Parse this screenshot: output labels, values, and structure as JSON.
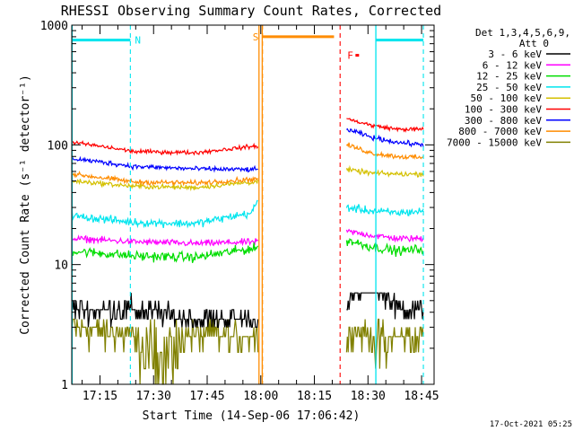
{
  "chart_data": {
    "type": "line",
    "title": "RHESSI Observing Summary Count Rates, Corrected",
    "ylabel": "Corrected Count Rate (s⁻¹ detector⁻¹)",
    "xlabel": "Start Time (14-Sep-06 17:06:42)",
    "ylog": true,
    "xlim": [
      7.1,
      108.5
    ],
    "ylim": [
      1,
      1000
    ],
    "x_ticks": [
      {
        "v": 15,
        "label": "17:15"
      },
      {
        "v": 30,
        "label": "17:30"
      },
      {
        "v": 45,
        "label": "17:45"
      },
      {
        "v": 60,
        "label": "18:00"
      },
      {
        "v": 75,
        "label": "18:15"
      },
      {
        "v": 90,
        "label": "18:30"
      },
      {
        "v": 105,
        "label": "18:45"
      }
    ],
    "y_ticks": [
      {
        "v": 1,
        "label": "1"
      },
      {
        "v": 10,
        "label": "10"
      },
      {
        "v": 100,
        "label": "100"
      },
      {
        "v": 1000,
        "label": "1000"
      }
    ],
    "legend": {
      "header": [
        "Det 1,3,4,5,6,9,",
        "Att 0"
      ],
      "placement": "right"
    },
    "series": [
      {
        "name": "3 - 6 keV",
        "color": "#000000",
        "seg1": [
          4.2,
          4.2,
          3.5,
          3.5
        ],
        "seg2": [
          4.5,
          7.2,
          4.2,
          4.2
        ],
        "noise": 0.14
      },
      {
        "name": "6 - 12 keV",
        "color": "#ff00ff",
        "seg1": [
          16.5,
          15.5,
          15.0,
          15.5
        ],
        "seg2": [
          19.0,
          17.5,
          16.5,
          16.5
        ],
        "noise": 0.04
      },
      {
        "name": "12 - 25 keV",
        "color": "#00dd00",
        "seg1": [
          13.0,
          11.8,
          11.5,
          13.8
        ],
        "seg2": [
          16.0,
          14.0,
          13.0,
          13.5
        ],
        "noise": 0.06
      },
      {
        "name": "25 - 50 keV",
        "color": "#00e5ee",
        "seg1": [
          25.5,
          22.5,
          22.0,
          27.5
        ],
        "seg2": [
          30.0,
          28.0,
          27.0,
          28.0
        ],
        "noise": 0.05
      },
      {
        "name": "50 - 100 keV",
        "color": "#d4c000",
        "seg1": [
          50.0,
          45.0,
          44.0,
          49.5
        ],
        "seg2": [
          62.0,
          58.0,
          57.0,
          57.0
        ],
        "noise": 0.03
      },
      {
        "name": "100 - 300 keV",
        "color": "#ff0000",
        "seg1": [
          105.0,
          88.0,
          86.0,
          98.0
        ],
        "seg2": [
          165.0,
          145.0,
          135.0,
          135.0
        ],
        "noise": 0.025
      },
      {
        "name": "300 - 800 keV",
        "color": "#0000ff",
        "seg1": [
          77.0,
          66.0,
          63.0,
          62.0
        ],
        "seg2": [
          135.0,
          115.0,
          105.0,
          100.0
        ],
        "noise": 0.03
      },
      {
        "name": "800 - 7000 keV",
        "color": "#ff8c00",
        "seg1": [
          57.0,
          49.0,
          48.0,
          52.0
        ],
        "seg2": [
          100.0,
          85.0,
          80.0,
          78.0
        ],
        "noise": 0.03
      },
      {
        "name": "7000 - 15000 keV",
        "color": "#808000",
        "seg1": [
          3.0,
          2.5,
          2.5,
          2.5
        ],
        "seg2": [
          2.7,
          2.5,
          2.4,
          2.4
        ],
        "noise": 0.22
      }
    ],
    "segments": [
      {
        "x_start": 7.2,
        "x_end": 59.2
      },
      {
        "x_start": 84.0,
        "x_end": 105.5
      }
    ],
    "flags": [
      {
        "label": "N",
        "color": "#00e5ee",
        "x_start": 7.2,
        "x_end": 23.5,
        "y": 750,
        "line_x": 23.5
      },
      {
        "label": "S",
        "color": "#ff8c00",
        "x_start": 60.5,
        "x_end": 80.5,
        "y": 800,
        "line_x": 60.5
      },
      {
        "label": "F",
        "color": "#ff0000",
        "x_start": 86.5,
        "x_end": 87.5,
        "y": 560,
        "line_x": 82.2
      },
      {
        "label": "",
        "color": "#00e5ee",
        "x_start": 92.2,
        "x_end": 105.5,
        "y": 750,
        "line_x": 105.5
      }
    ],
    "solid_lines": [
      {
        "x": 7.2,
        "color": "#00e5ee"
      },
      {
        "x": 59.5,
        "color": "#ff8c00"
      },
      {
        "x": 60.4,
        "color": "#ff8c00"
      },
      {
        "x": 92.2,
        "color": "#00e5ee"
      }
    ]
  },
  "footer": {
    "timestamp": "17-Oct-2021 05:25"
  }
}
